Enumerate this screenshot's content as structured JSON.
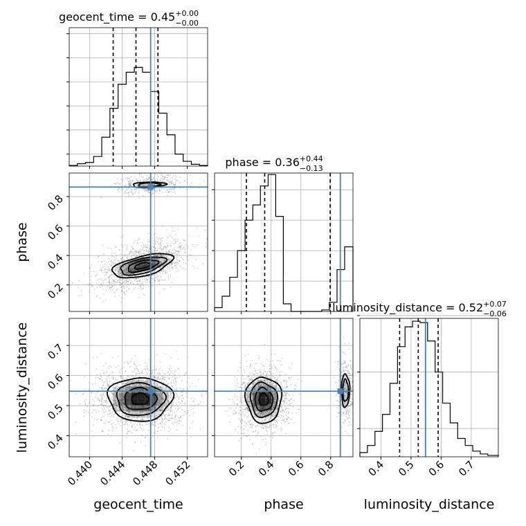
{
  "chart_data": {
    "type": "corner",
    "parameters": [
      "geocent_time",
      "phase",
      "luminosity_distance"
    ],
    "truth": {
      "geocent_time": 0.4475,
      "phase": 0.865,
      "luminosity_distance": 0.548
    },
    "truth_color": "#4682b4",
    "grid": true,
    "diagonal": [
      {
        "parameter": "geocent_time",
        "title_name": "geocent_time = 0.45",
        "title_plus": "+0.00",
        "title_minus": "−0.00",
        "range": [
          0.4375,
          0.4545
        ],
        "bins": [
          0.4375,
          0.4385,
          0.4395,
          0.4405,
          0.4415,
          0.4425,
          0.4435,
          0.4445,
          0.4455,
          0.4465,
          0.4475,
          0.4485,
          0.4495,
          0.4505,
          0.4515,
          0.4525,
          0.4535,
          0.4545
        ],
        "counts": [
          0.5,
          2,
          3,
          8,
          24,
          48,
          68,
          78,
          82,
          78,
          62,
          44,
          26,
          10,
          4,
          1.5,
          0.5
        ],
        "count_ticks": [
          10,
          30,
          50,
          70,
          90,
          110
        ],
        "count_max": 115,
        "quantiles": [
          0.4429,
          0.4457,
          0.4484
        ],
        "ticks": [
          0.44,
          0.444,
          0.448,
          0.452
        ],
        "tick_labels": [
          "0.440",
          "0.444",
          "0.448",
          "0.452"
        ]
      },
      {
        "parameter": "phase",
        "title_name": "phase = 0.36",
        "title_plus": "+0.44",
        "title_minus": "−0.13",
        "range": [
          0.02,
          0.95
        ],
        "bins": [
          0.02,
          0.071,
          0.122,
          0.174,
          0.225,
          0.277,
          0.328,
          0.38,
          0.431,
          0.482,
          0.534,
          0.585,
          0.637,
          0.688,
          0.74,
          0.791,
          0.843,
          0.894,
          0.95
        ],
        "counts": [
          5,
          20,
          45,
          80,
          120,
          140,
          165,
          180,
          125,
          10,
          0,
          0,
          0,
          0,
          2,
          12,
          55,
          85
        ],
        "count_ticks": [
          40,
          80,
          120,
          160
        ],
        "count_max": 182,
        "quantiles": [
          0.234,
          0.357,
          0.797
        ],
        "ticks": [
          0.2,
          0.4,
          0.6,
          0.8
        ],
        "tick_labels": [
          "0.2",
          "0.4",
          "0.6",
          "0.8"
        ]
      },
      {
        "parameter": "luminosity_distance",
        "title_name": "luminosity_distance = 0.52",
        "title_plus": "+0.07",
        "title_minus": "−0.06",
        "range": [
          0.33,
          0.79
        ],
        "bins": [
          0.33,
          0.355,
          0.38,
          0.405,
          0.43,
          0.455,
          0.48,
          0.505,
          0.53,
          0.555,
          0.58,
          0.605,
          0.63,
          0.655,
          0.68,
          0.705,
          0.73,
          0.755,
          0.79
        ],
        "counts": [
          3,
          8,
          18,
          30,
          52,
          78,
          92,
          96,
          95,
          82,
          60,
          38,
          24,
          13,
          8,
          4,
          2,
          1
        ],
        "count_ticks": [
          20,
          60,
          100
        ],
        "count_max": 98,
        "quantiles": [
          0.462,
          0.524,
          0.59
        ],
        "ticks": [
          0.4,
          0.5,
          0.6,
          0.7
        ],
        "tick_labels": [
          "0.4",
          "0.5",
          "0.6",
          "0.7"
        ]
      }
    ],
    "pairs": [
      {
        "x": "geocent_time",
        "y": "phase",
        "xrange": [
          0.4375,
          0.4545
        ],
        "yrange": [
          0.02,
          0.96
        ]
      },
      {
        "x": "geocent_time",
        "y": "luminosity_distance",
        "xrange": [
          0.4375,
          0.4545
        ],
        "yrange": [
          0.33,
          0.79
        ]
      },
      {
        "x": "phase",
        "y": "luminosity_distance",
        "xrange": [
          0.02,
          0.95
        ],
        "yrange": [
          0.33,
          0.79
        ]
      }
    ],
    "axis_labels": {
      "x": [
        "geocent_time",
        "phase",
        "luminosity_distance"
      ],
      "y": [
        "phase",
        "luminosity_distance"
      ]
    }
  }
}
